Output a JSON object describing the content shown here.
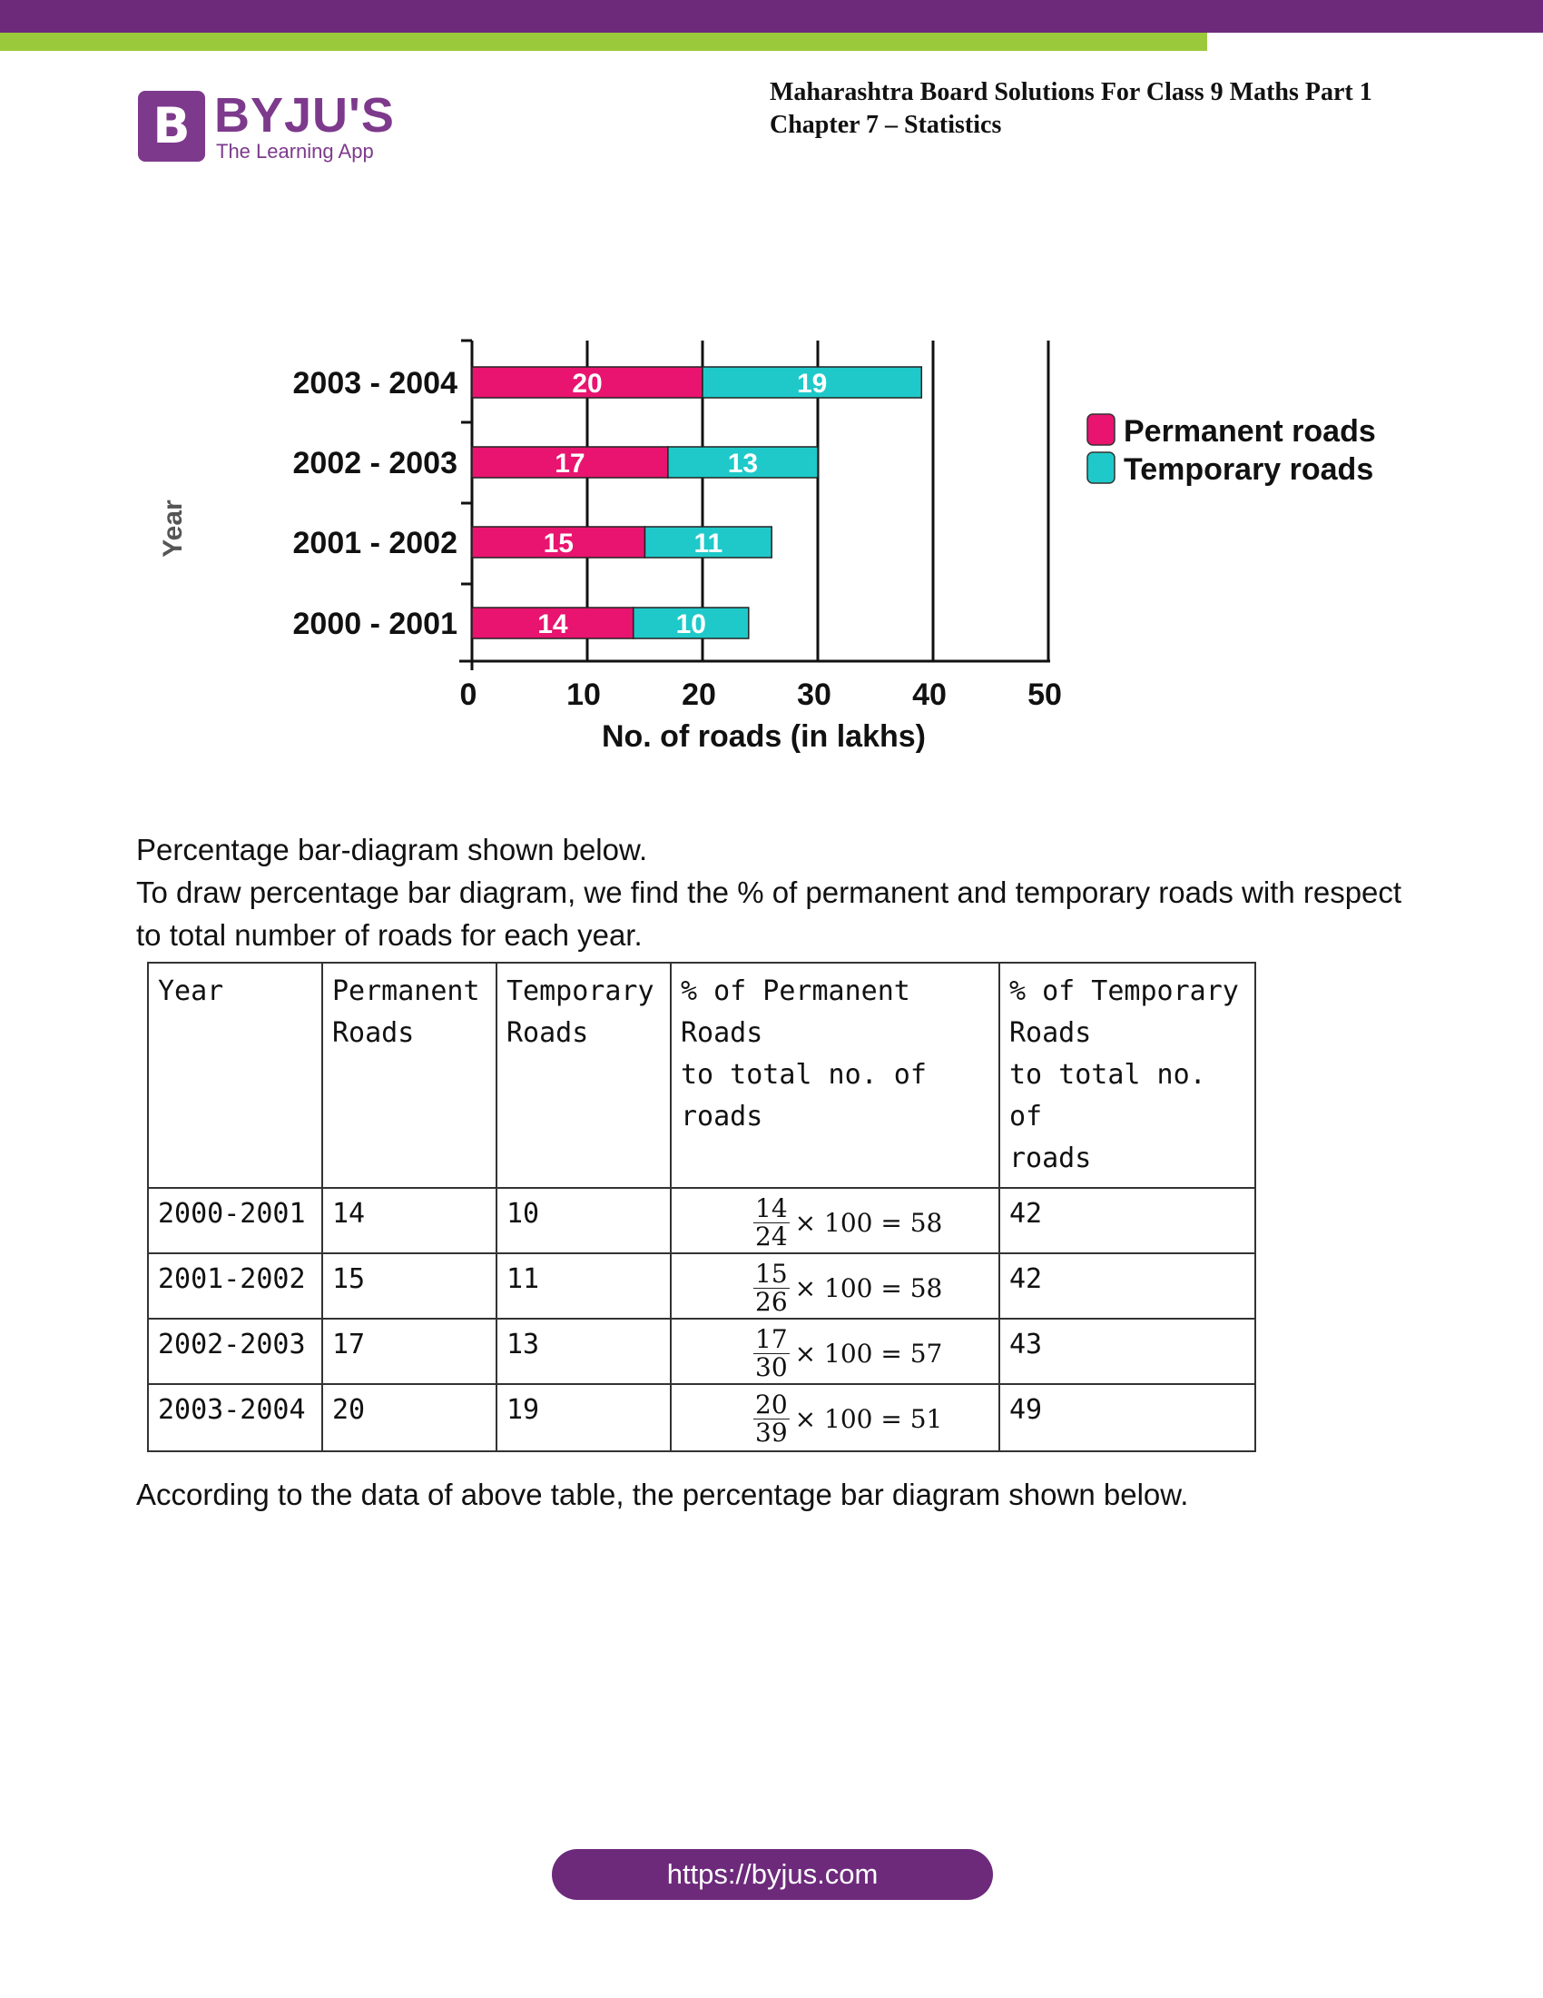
{
  "brand": {
    "name": "BYJU'S",
    "tagline": "The Learning App",
    "logo_letter": "B",
    "purple": "#6d2a7b",
    "green": "#9bc93c"
  },
  "header": {
    "line1": "Maharashtra Board Solutions For Class 9 Maths Part 1",
    "line2": "Chapter 7 – Statistics"
  },
  "chart_data": {
    "type": "bar",
    "orientation": "horizontal",
    "stacked": true,
    "categories": [
      "2000 - 2001",
      "2001 - 2002",
      "2002 - 2003",
      "2003 - 2004"
    ],
    "series": [
      {
        "name": "Permanent roads",
        "values": [
          14,
          15,
          17,
          20
        ],
        "color": "#e8146f"
      },
      {
        "name": "Temporary roads",
        "values": [
          10,
          11,
          13,
          19
        ],
        "color": "#1fc9c9"
      }
    ],
    "xlabel": "No. of roads (in lakhs)",
    "ylabel": "Year",
    "xlim": [
      0,
      50
    ],
    "xticks": [
      0,
      10,
      20,
      30,
      40,
      50
    ],
    "grid": true,
    "legend": "right"
  },
  "text": {
    "p1": "Percentage bar-diagram shown below.",
    "p2": "To draw percentage bar diagram, we find the % of permanent and temporary roads with respect to total number of roads for each year.",
    "p3": "According to the data of above table, the percentage bar diagram shown below."
  },
  "table": {
    "headers": [
      [
        "Year"
      ],
      [
        "Permanent",
        "Roads"
      ],
      [
        "Temporary",
        "Roads"
      ],
      [
        "% of Permanent",
        "Roads",
        "to total no. of roads"
      ],
      [
        "% of Temporary",
        "Roads",
        "to total no. of",
        "roads"
      ]
    ],
    "rows": [
      {
        "year": "2000-2001",
        "permanent": "14",
        "temporary": "10",
        "num": "14",
        "den": "24",
        "formula": "× 100 = 58",
        "temp_pct": "42"
      },
      {
        "year": "2001-2002",
        "permanent": "15",
        "temporary": "11",
        "num": "15",
        "den": "26",
        "formula": "× 100 = 58",
        "temp_pct": "42"
      },
      {
        "year": "2002-2003",
        "permanent": "17",
        "temporary": "13",
        "num": "17",
        "den": "30",
        "formula": "× 100 = 57",
        "temp_pct": "43"
      },
      {
        "year": "2003-2004",
        "permanent": "20",
        "temporary": "19",
        "num": "20",
        "den": "39",
        "formula": "× 100 = 51",
        "temp_pct": "49"
      }
    ]
  },
  "footer": {
    "url": "https://byjus.com"
  }
}
